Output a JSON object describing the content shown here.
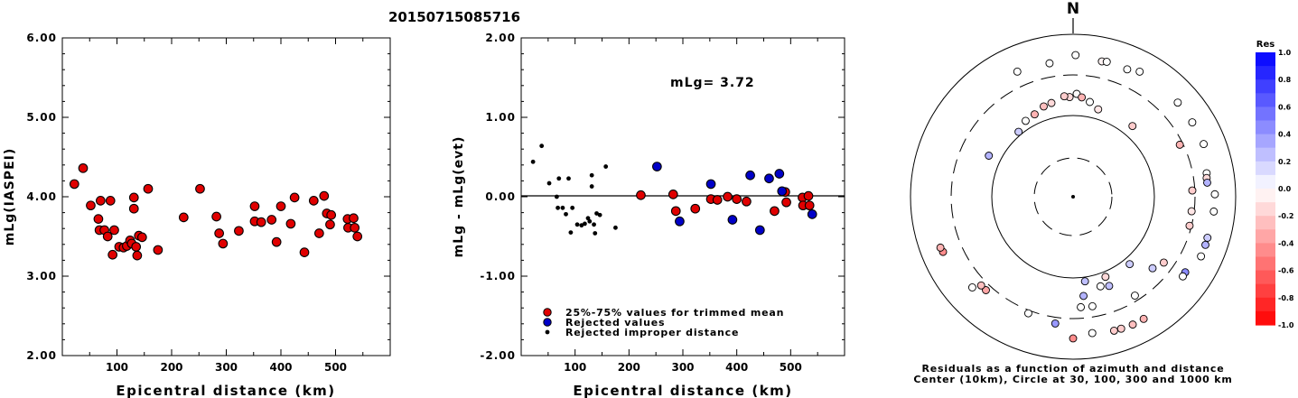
{
  "title": "20150715085716",
  "chart_data": [
    {
      "type": "scatter",
      "xlabel": "Epicentral distance (km)",
      "ylabel": "mLg(IASPEI)",
      "xlim": [
        0,
        600
      ],
      "ylim": [
        2.0,
        6.0
      ],
      "xticks": [
        100,
        200,
        300,
        400,
        500
      ],
      "xtick_labels": [
        "100",
        "200",
        "300",
        "400",
        "500"
      ],
      "yticks": [
        2.0,
        3.0,
        4.0,
        5.0,
        6.0
      ],
      "ytick_labels": [
        "2.00",
        "3.00",
        "4.00",
        "5.00",
        "6.00"
      ],
      "series": [
        {
          "color": "#e00000",
          "points": [
            [
              22,
              4.16
            ],
            [
              38,
              4.36
            ],
            [
              52,
              3.89
            ],
            [
              66,
              3.72
            ],
            [
              68,
              3.58
            ],
            [
              70,
              3.95
            ],
            [
              77,
              3.58
            ],
            [
              83,
              3.5
            ],
            [
              88,
              3.95
            ],
            [
              92,
              3.27
            ],
            [
              95,
              3.58
            ],
            [
              104,
              3.37
            ],
            [
              112,
              3.36
            ],
            [
              118,
              3.38
            ],
            [
              124,
              3.45
            ],
            [
              127,
              3.41
            ],
            [
              131,
              3.85
            ],
            [
              131,
              3.99
            ],
            [
              135,
              3.37
            ],
            [
              137,
              3.26
            ],
            [
              140,
              3.51
            ],
            [
              146,
              3.49
            ],
            [
              157,
              4.1
            ],
            [
              175,
              3.33
            ],
            [
              222,
              3.74
            ],
            [
              252,
              4.1
            ],
            [
              282,
              3.75
            ],
            [
              287,
              3.54
            ],
            [
              294,
              3.41
            ],
            [
              323,
              3.57
            ],
            [
              352,
              3.88
            ],
            [
              352,
              3.69
            ],
            [
              364,
              3.68
            ],
            [
              383,
              3.71
            ],
            [
              392,
              3.43
            ],
            [
              400,
              3.88
            ],
            [
              418,
              3.66
            ],
            [
              425,
              3.99
            ],
            [
              443,
              3.3
            ],
            [
              460,
              3.95
            ],
            [
              470,
              3.54
            ],
            [
              479,
              4.01
            ],
            [
              484,
              3.79
            ],
            [
              490,
              3.65
            ],
            [
              492,
              3.77
            ],
            [
              522,
              3.72
            ],
            [
              523,
              3.61
            ],
            [
              533,
              3.73
            ],
            [
              535,
              3.61
            ],
            [
              540,
              3.5
            ]
          ]
        }
      ]
    },
    {
      "type": "scatter",
      "xlabel": "Epicentral distance (km)",
      "ylabel": "mLg - mLg(evt)",
      "xlim": [
        0,
        600
      ],
      "ylim": [
        -2.0,
        2.0
      ],
      "xticks": [
        100,
        200,
        300,
        400,
        500
      ],
      "xtick_labels": [
        "100",
        "200",
        "300",
        "400",
        "500"
      ],
      "yticks": [
        -2.0,
        -1.0,
        0.0,
        1.0,
        2.0
      ],
      "ytick_labels": [
        "-2.00",
        "-1.00",
        "0.00",
        "1.00",
        "2.00"
      ],
      "annotation": "mLg= 3.72",
      "zero_line": 0,
      "series": [
        {
          "name": "25%-75% values for trimmed mean",
          "color": "#e00000",
          "points": [
            [
              222,
              0.02
            ],
            [
              282,
              0.03
            ],
            [
              287,
              -0.18
            ],
            [
              323,
              -0.15
            ],
            [
              352,
              -0.03
            ],
            [
              364,
              -0.04
            ],
            [
              383,
              0.0
            ],
            [
              400,
              -0.03
            ],
            [
              418,
              -0.06
            ],
            [
              470,
              -0.18
            ],
            [
              490,
              0.06
            ],
            [
              492,
              -0.07
            ],
            [
              522,
              -0.01
            ],
            [
              523,
              -0.11
            ],
            [
              533,
              0.01
            ],
            [
              535,
              -0.11
            ]
          ]
        },
        {
          "name": "Rejected values",
          "color": "#0000c8",
          "points": [
            [
              252,
              0.38
            ],
            [
              294,
              -0.31
            ],
            [
              352,
              0.16
            ],
            [
              392,
              -0.29
            ],
            [
              425,
              0.27
            ],
            [
              443,
              -0.42
            ],
            [
              460,
              0.23
            ],
            [
              479,
              0.29
            ],
            [
              484,
              0.07
            ],
            [
              540,
              -0.22
            ]
          ]
        },
        {
          "name": "Rejected improper distance",
          "color": "#000000",
          "points": [
            [
              22,
              0.44
            ],
            [
              38,
              0.64
            ],
            [
              52,
              0.17
            ],
            [
              66,
              0.0
            ],
            [
              68,
              -0.14
            ],
            [
              70,
              0.23
            ],
            [
              77,
              -0.14
            ],
            [
              83,
              -0.22
            ],
            [
              88,
              0.23
            ],
            [
              92,
              -0.45
            ],
            [
              95,
              -0.14
            ],
            [
              104,
              -0.35
            ],
            [
              112,
              -0.36
            ],
            [
              118,
              -0.34
            ],
            [
              124,
              -0.27
            ],
            [
              127,
              -0.31
            ],
            [
              131,
              0.13
            ],
            [
              131,
              0.27
            ],
            [
              135,
              -0.35
            ],
            [
              137,
              -0.46
            ],
            [
              140,
              -0.21
            ],
            [
              146,
              -0.23
            ],
            [
              157,
              0.38
            ],
            [
              175,
              -0.39
            ]
          ]
        }
      ]
    },
    {
      "type": "scatter",
      "projection": "polar",
      "north_label": "N",
      "caption_lines": [
        "Residuals as a function of azimuth and distance",
        "Center (10km), Circle at 30, 100, 300 and 1000 km"
      ],
      "colorbar": {
        "title": "Res",
        "ticks": [
          1.0,
          0.8,
          0.6,
          0.4,
          0.2,
          0.0,
          -0.2,
          -0.4,
          -0.6,
          -0.8,
          -1.0
        ],
        "tick_labels": [
          "1.0",
          "0.8",
          "0.6",
          "0.4",
          "0.2",
          "0.0",
          "-0.2",
          "-0.4",
          "-0.6",
          "-0.8",
          "-1.0"
        ],
        "positive_color": "#0000ff",
        "negative_color": "#ff0000",
        "neutral_color": "#ffffff"
      },
      "stations": [
        {
          "az": 1,
          "dist": 540,
          "res": 0.0
        },
        {
          "az": 12,
          "dist": 490,
          "res": -0.05
        },
        {
          "az": 14,
          "dist": 500,
          "res": 0.0
        },
        {
          "az": 23,
          "dist": 490,
          "res": 0.0
        },
        {
          "az": 28,
          "dist": 540,
          "res": 0.0
        },
        {
          "az": 336,
          "dist": 470,
          "res": 0.0
        },
        {
          "az": 350,
          "dist": 450,
          "res": 0.0
        },
        {
          "az": 2,
          "dist": 180,
          "res": -0.02
        },
        {
          "az": 358,
          "dist": 165,
          "res": -0.15
        },
        {
          "az": 355,
          "dist": 170,
          "res": -0.2
        },
        {
          "az": 10,
          "dist": 150,
          "res": 0.0
        },
        {
          "az": 16,
          "dist": 130,
          "res": -0.1
        },
        {
          "az": 347,
          "dist": 150,
          "res": -0.15
        },
        {
          "az": 342,
          "dist": 145,
          "res": -0.25
        },
        {
          "az": 5,
          "dist": 165,
          "res": -0.3
        },
        {
          "az": 335,
          "dist": 130,
          "res": -0.3
        },
        {
          "az": 328,
          "dist": 125,
          "res": 0.0
        },
        {
          "az": 320,
          "dist": 110,
          "res": 0.2
        },
        {
          "az": 296,
          "dist": 140,
          "res": 0.3
        },
        {
          "az": 40,
          "dist": 135,
          "res": -0.2
        },
        {
          "az": 48,
          "dist": 525,
          "res": 0.0
        },
        {
          "az": 58,
          "dist": 520,
          "res": 0.0
        },
        {
          "az": 68,
          "dist": 525,
          "res": 0.0
        },
        {
          "az": 80,
          "dist": 450,
          "res": 0.0
        },
        {
          "az": 82,
          "dist": 440,
          "res": -0.15
        },
        {
          "az": 84,
          "dist": 440,
          "res": 0.3
        },
        {
          "az": 89,
          "dist": 540,
          "res": 0.0
        },
        {
          "az": 96,
          "dist": 535,
          "res": 0.0
        },
        {
          "az": 107,
          "dist": 520,
          "res": 0.2
        },
        {
          "az": 110,
          "dist": 525,
          "res": 0.3
        },
        {
          "az": 115,
          "dist": 530,
          "res": 0.0
        },
        {
          "az": 124,
          "dist": 445,
          "res": 0.45
        },
        {
          "az": 126,
          "dist": 450,
          "res": 0.0
        },
        {
          "az": 87,
          "dist": 280,
          "res": -0.2
        },
        {
          "az": 64,
          "dist": 275,
          "res": -0.3
        },
        {
          "az": 97,
          "dist": 280,
          "res": -0.1
        },
        {
          "az": 104,
          "dist": 285,
          "res": -0.2
        },
        {
          "az": 132,
          "dist": 200,
          "res": 0.2
        },
        {
          "az": 126,
          "dist": 230,
          "res": -0.2
        },
        {
          "az": 158,
          "dist": 150,
          "res": 0.25
        },
        {
          "az": 172,
          "dist": 112,
          "res": 0.25
        },
        {
          "az": 158,
          "dist": 115,
          "res": -0.15
        },
        {
          "az": 163,
          "dist": 140,
          "res": 0.0
        },
        {
          "az": 174,
          "dist": 165,
          "res": 0.3
        },
        {
          "az": 148,
          "dist": 260,
          "res": 0.0
        },
        {
          "az": 170,
          "dist": 225,
          "res": 0.0
        },
        {
          "az": 176,
          "dist": 222,
          "res": 0.0
        },
        {
          "az": 180,
          "dist": 540,
          "res": -0.45
        },
        {
          "az": 172,
          "dist": 480,
          "res": 0.0
        },
        {
          "az": 163,
          "dist": 515,
          "res": -0.2
        },
        {
          "az": 160,
          "dist": 520,
          "res": -0.2
        },
        {
          "az": 155,
          "dist": 530,
          "res": -0.25
        },
        {
          "az": 150,
          "dist": 530,
          "res": -0.3
        },
        {
          "az": 188,
          "dist": 360,
          "res": 0.4
        },
        {
          "az": 201,
          "dist": 328,
          "res": 0.0
        },
        {
          "az": 223,
          "dist": 357,
          "res": -0.35
        },
        {
          "az": 226,
          "dist": 357,
          "res": -0.25
        },
        {
          "az": 228,
          "dist": 450,
          "res": 0.0
        },
        {
          "az": 247,
          "dist": 532,
          "res": -0.45
        },
        {
          "az": 249,
          "dist": 545,
          "res": -0.3
        },
        {
          "az": 140,
          "dist": 120,
          "res": 0.2
        }
      ]
    }
  ]
}
